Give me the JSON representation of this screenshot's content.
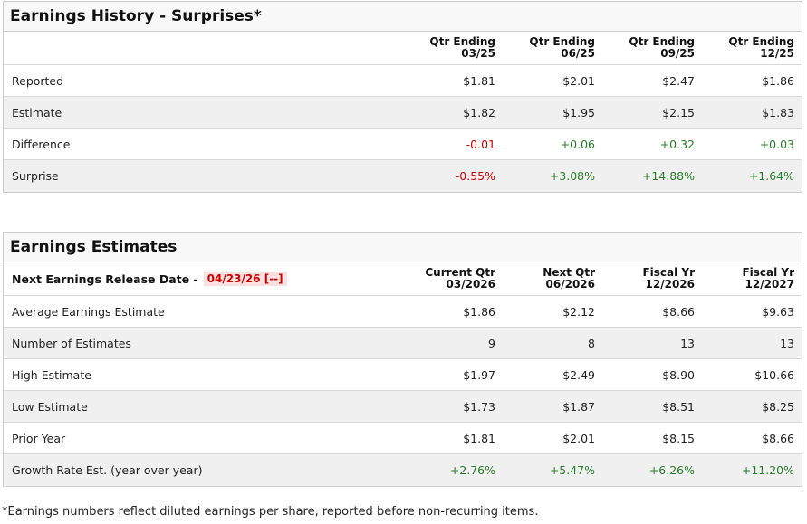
{
  "history": {
    "title": "Earnings History - Surprises*",
    "columns": [
      {
        "line1": "Qtr Ending",
        "line2": "03/25"
      },
      {
        "line1": "Qtr Ending",
        "line2": "06/25"
      },
      {
        "line1": "Qtr Ending",
        "line2": "09/25"
      },
      {
        "line1": "Qtr Ending",
        "line2": "12/25"
      }
    ],
    "rows": [
      {
        "label": "Reported",
        "values": [
          "$1.81",
          "$2.01",
          "$2.47",
          "$1.86"
        ]
      },
      {
        "label": "Estimate",
        "values": [
          "$1.82",
          "$1.95",
          "$2.15",
          "$1.83"
        ]
      },
      {
        "label": "Difference",
        "values": [
          "-0.01",
          "+0.06",
          "+0.32",
          "+0.03"
        ]
      },
      {
        "label": "Surprise",
        "values": [
          "-0.55%",
          "+3.08%",
          "+14.88%",
          "+1.64%"
        ]
      }
    ]
  },
  "estimates": {
    "title": "Earnings Estimates",
    "release_label": "Next Earnings Release Date -",
    "release_date": "04/23/26 [--]",
    "columns": [
      {
        "line1": "Current Qtr",
        "line2": "03/2026"
      },
      {
        "line1": "Next Qtr",
        "line2": "06/2026"
      },
      {
        "line1": "Fiscal Yr",
        "line2": "12/2026"
      },
      {
        "line1": "Fiscal Yr",
        "line2": "12/2027"
      }
    ],
    "rows": [
      {
        "label": "Average Earnings Estimate",
        "values": [
          "$1.86",
          "$2.12",
          "$8.66",
          "$9.63"
        ]
      },
      {
        "label": "Number of Estimates",
        "values": [
          "9",
          "8",
          "13",
          "13"
        ]
      },
      {
        "label": "High Estimate",
        "values": [
          "$1.97",
          "$2.49",
          "$8.90",
          "$10.66"
        ]
      },
      {
        "label": "Low Estimate",
        "values": [
          "$1.73",
          "$1.87",
          "$8.51",
          "$8.25"
        ]
      },
      {
        "label": "Prior Year",
        "values": [
          "$1.81",
          "$2.01",
          "$8.15",
          "$8.66"
        ]
      },
      {
        "label": "Growth Rate Est. (year over year)",
        "values": [
          "+2.76%",
          "+5.47%",
          "+6.26%",
          "+11.20%"
        ]
      }
    ]
  },
  "footnote": "*Earnings numbers reflect diluted earnings per share, reported before non-recurring items.",
  "colors": {
    "negative": "#cc0000",
    "positive": "#2a7d2a",
    "row_alt": "#f0f0f0"
  }
}
